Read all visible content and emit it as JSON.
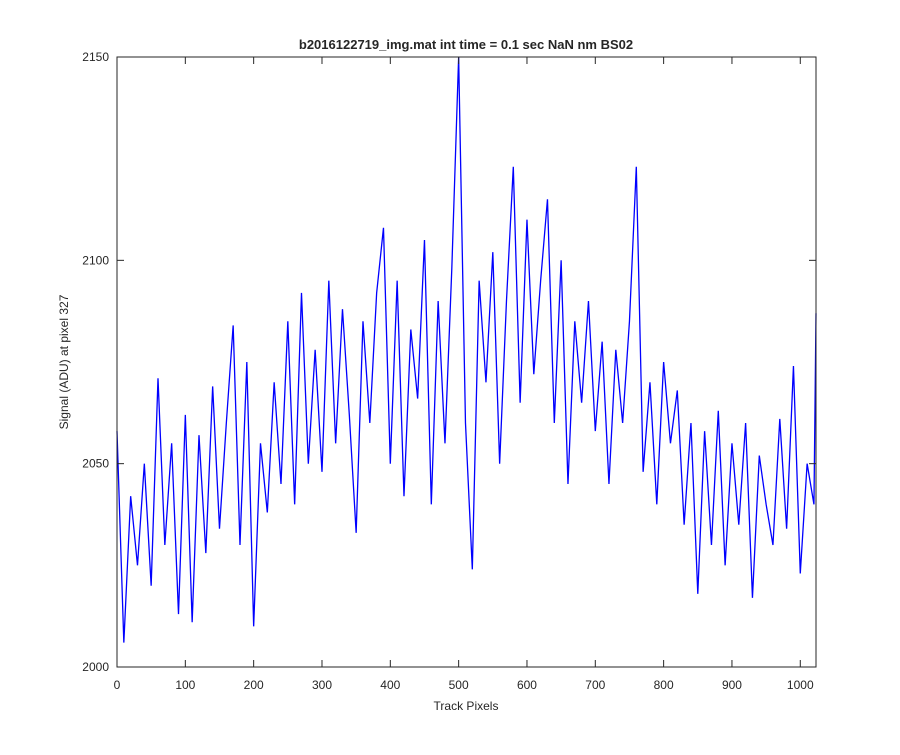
{
  "chart_data": {
    "type": "line",
    "title": "b2016122719_img.mat int time = 0.1 sec  NaN nm BS02",
    "x_label": "Track Pixels",
    "y_label": "Signal (ADU) at pixel 327",
    "x": [
      0,
      10,
      20,
      30,
      40,
      50,
      60,
      70,
      80,
      90,
      100,
      110,
      120,
      130,
      140,
      150,
      160,
      170,
      180,
      190,
      200,
      210,
      220,
      230,
      240,
      250,
      260,
      270,
      280,
      290,
      300,
      310,
      320,
      330,
      340,
      350,
      360,
      370,
      380,
      390,
      400,
      410,
      420,
      430,
      440,
      450,
      460,
      470,
      480,
      490,
      500,
      510,
      520,
      530,
      540,
      550,
      560,
      570,
      580,
      590,
      600,
      610,
      620,
      630,
      640,
      650,
      660,
      670,
      680,
      690,
      700,
      710,
      720,
      730,
      740,
      750,
      760,
      770,
      780,
      790,
      800,
      810,
      820,
      830,
      840,
      850,
      860,
      870,
      880,
      890,
      900,
      910,
      920,
      930,
      940,
      950,
      960,
      970,
      980,
      990,
      1000,
      1010,
      1020,
      1023
    ],
    "series": [
      {
        "color": "#0000ff",
        "values": [
          2058,
          2006,
          2042,
          2025,
          2050,
          2020,
          2071,
          2030,
          2055,
          2013,
          2062,
          2011,
          2057,
          2028,
          2069,
          2034,
          2060,
          2084,
          2030,
          2075,
          2010,
          2055,
          2038,
          2070,
          2045,
          2085,
          2040,
          2092,
          2050,
          2078,
          2048,
          2095,
          2055,
          2088,
          2062,
          2033,
          2085,
          2060,
          2092,
          2108,
          2050,
          2095,
          2042,
          2083,
          2066,
          2105,
          2040,
          2090,
          2055,
          2098,
          2150,
          2060,
          2024,
          2095,
          2070,
          2102,
          2050,
          2090,
          2123,
          2065,
          2110,
          2072,
          2095,
          2115,
          2060,
          2100,
          2045,
          2085,
          2065,
          2090,
          2058,
          2080,
          2045,
          2078,
          2060,
          2085,
          2123,
          2048,
          2070,
          2040,
          2075,
          2055,
          2068,
          2035,
          2060,
          2018,
          2058,
          2030,
          2063,
          2025,
          2055,
          2035,
          2060,
          2017,
          2052,
          2040,
          2030,
          2061,
          2034,
          2074,
          2023,
          2050,
          2040,
          2087
        ]
      }
    ],
    "xlim": [
      0,
      1023
    ],
    "ylim": [
      2000,
      2150
    ],
    "xticks": [
      0,
      100,
      200,
      300,
      400,
      500,
      600,
      700,
      800,
      900,
      1000
    ],
    "yticks": [
      2000,
      2050,
      2100,
      2150
    ]
  }
}
